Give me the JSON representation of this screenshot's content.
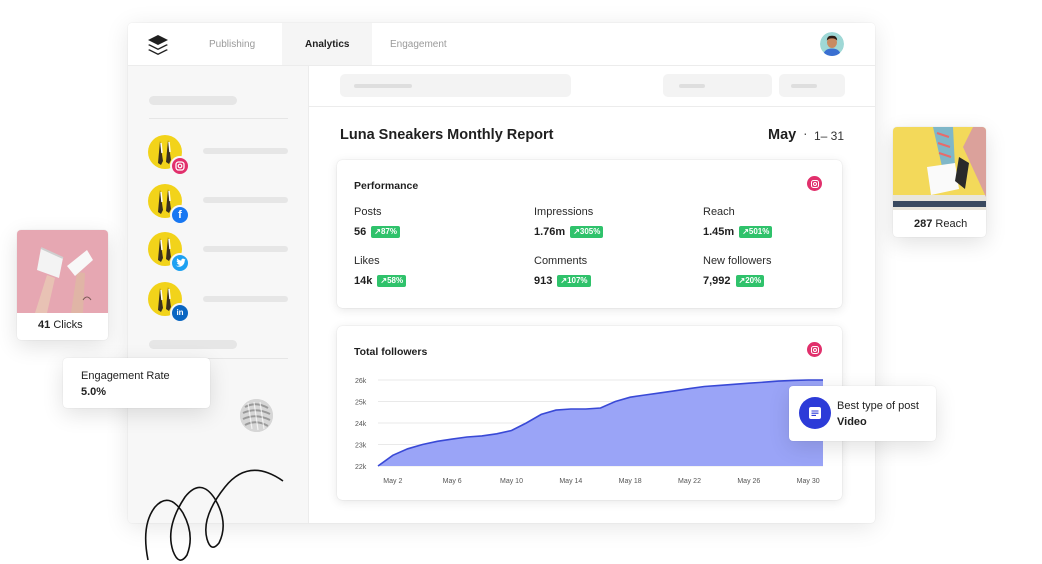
{
  "nav": {
    "tabs": [
      {
        "label": "Publishing"
      },
      {
        "label": "Analytics",
        "active": true
      },
      {
        "label": "Engagement"
      }
    ]
  },
  "report": {
    "title": "Luna Sneakers Monthly Report",
    "month": "May",
    "separator": "·",
    "range": "1– 31"
  },
  "sidebar": {
    "accounts": [
      {
        "network": "instagram",
        "badge_icon": "instagram-icon",
        "color": "#e1306c"
      },
      {
        "network": "facebook",
        "badge_icon": "facebook-icon",
        "color": "#1877f2",
        "badge_text": "f"
      },
      {
        "network": "twitter",
        "badge_icon": "twitter-icon",
        "color": "#1da1f2"
      },
      {
        "network": "linkedin",
        "badge_icon": "linkedin-icon",
        "color": "#0a66c2",
        "badge_text": "in"
      }
    ]
  },
  "performance": {
    "title": "Performance",
    "metrics": [
      {
        "label": "Posts",
        "value": "56",
        "change": "↗87%"
      },
      {
        "label": "Impressions",
        "value": "1.76m",
        "change": "↗305%"
      },
      {
        "label": "Reach",
        "value": "1.45m",
        "change": "↗501%"
      },
      {
        "label": "Likes",
        "value": "14k",
        "change": "↗58%"
      },
      {
        "label": "Comments",
        "value": "913",
        "change": "↗107%"
      },
      {
        "label": "New followers",
        "value": "7,992",
        "change": "↗20%"
      }
    ]
  },
  "followers_chart": {
    "title": "Total followers",
    "chart_data": {
      "type": "area",
      "x": [
        "May 1",
        "May 2",
        "May 3",
        "May 4",
        "May 5",
        "May 6",
        "May 7",
        "May 8",
        "May 9",
        "May 10",
        "May 11",
        "May 12",
        "May 13",
        "May 14",
        "May 15",
        "May 16",
        "May 17",
        "May 18",
        "May 19",
        "May 20",
        "May 21",
        "May 22",
        "May 23",
        "May 24",
        "May 25",
        "May 26",
        "May 27",
        "May 28",
        "May 29",
        "May 30",
        "May 31"
      ],
      "values": [
        22000,
        22500,
        22800,
        23000,
        23150,
        23250,
        23350,
        23400,
        23500,
        23650,
        24000,
        24400,
        24600,
        24650,
        24650,
        24700,
        25000,
        25200,
        25300,
        25400,
        25500,
        25600,
        25700,
        25750,
        25800,
        25850,
        25900,
        25950,
        25980,
        26000,
        26000
      ],
      "x_ticks": [
        "May 2",
        "May 6",
        "May 10",
        "May 14",
        "May 18",
        "May 22",
        "May 26",
        "May 30"
      ],
      "x_tick_positions": [
        "May 2",
        "May 6",
        "May 10",
        "May 14",
        "May 18",
        "May 22",
        "May 26",
        "May 30"
      ],
      "y_ticks": [
        "22k",
        "23k",
        "24k",
        "25k",
        "26k"
      ],
      "ylim": [
        22000,
        26000
      ],
      "grid": true,
      "fill_color": "#9aa4f7",
      "line_color": "#3949d6"
    }
  },
  "floats": {
    "clicks": {
      "value": "41",
      "label": "Clicks"
    },
    "reach": {
      "value": "287",
      "label": "Reach"
    },
    "engagement": {
      "label": "Engagement Rate",
      "value": "5.0%"
    },
    "best_post": {
      "label": "Best type of post",
      "value": "Video",
      "icon": "message-icon",
      "color": "#2c3bd8"
    }
  }
}
